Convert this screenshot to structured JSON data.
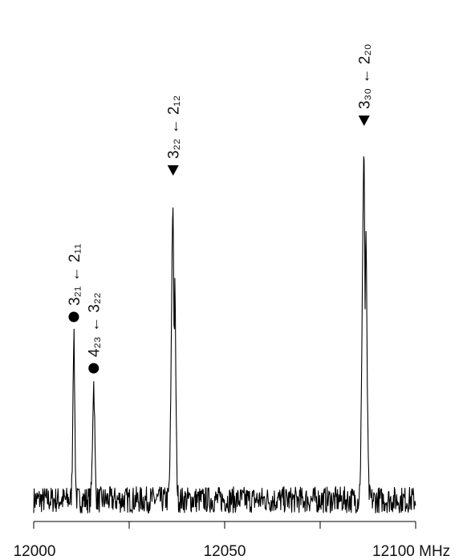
{
  "chart_data": {
    "type": "line",
    "title": "",
    "xlabel": "",
    "ylabel": "",
    "x_unit": "MHz",
    "xlim": [
      12000,
      12100
    ],
    "x_ticks": [
      12000,
      12025,
      12050,
      12075,
      12100
    ],
    "x_tick_labels": [
      "12000",
      "",
      "12050",
      "",
      "12100 MHz"
    ],
    "grid": false,
    "legend": "none",
    "baseline": 0.0,
    "noise_amplitude": 0.035,
    "line_color": "#000000",
    "peaks": [
      {
        "x": 12010.5,
        "height": 0.43,
        "width": 0.25,
        "split": 0.0
      },
      {
        "x": 12015.7,
        "height": 0.31,
        "width": 0.28,
        "split": 0.0
      },
      {
        "x": 12036.5,
        "height": 0.79,
        "width": 0.42,
        "split": 0.7
      },
      {
        "x": 12086.5,
        "height": 0.93,
        "width": 0.45,
        "split": 0.8
      }
    ],
    "annotations": [
      {
        "x": 12010.5,
        "marker": "circle",
        "text": "3₂₁ ← 2₁₁"
      },
      {
        "x": 12015.7,
        "marker": "circle",
        "text": "4₂₃ ← 3₂₂"
      },
      {
        "x": 12036.5,
        "marker": "triangle-down",
        "text": "3₂₂ ← 2₁₂"
      },
      {
        "x": 12086.5,
        "marker": "triangle-down",
        "text": "3₃₀ ← 2₂₀"
      }
    ]
  }
}
